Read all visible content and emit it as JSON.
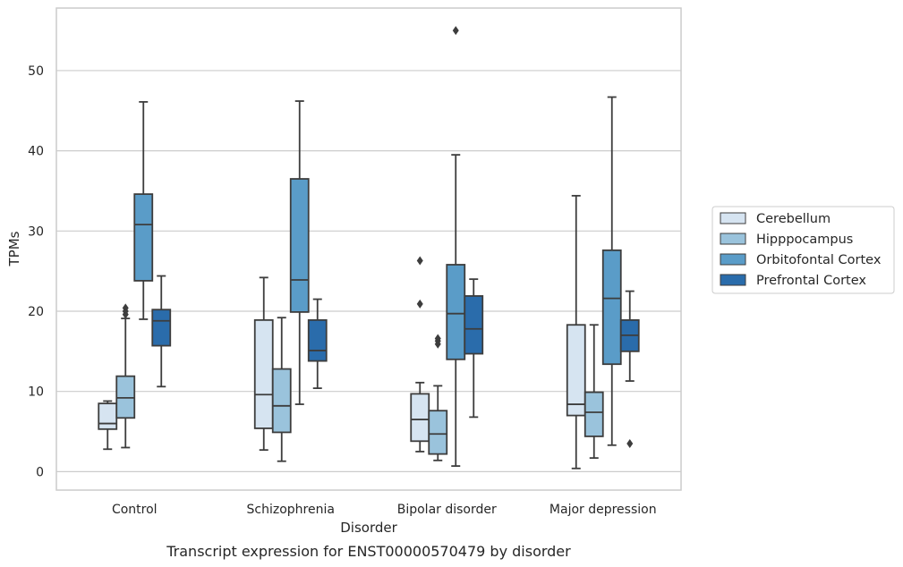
{
  "caption": "Transcript expression for ENST00000570479 by disorder",
  "chart_data": {
    "type": "box",
    "xlabel": "Disorder",
    "ylabel": "TPMs",
    "ylim": [
      -2.3,
      57.8
    ],
    "yticks": [
      0,
      10,
      20,
      30,
      40,
      50
    ],
    "grid": "horizontal",
    "legend_position": "right",
    "categories": [
      "Control",
      "Schizophrenia",
      "Bipolar disorder",
      "Major depression"
    ],
    "series": [
      {
        "name": "Cerebellum",
        "color": "#d6e4f1",
        "boxes": [
          {
            "q1": 5.3,
            "median": 6.0,
            "q3": 8.5,
            "whisker_low": 2.8,
            "whisker_high": 8.8,
            "outliers": []
          },
          {
            "q1": 5.4,
            "median": 9.6,
            "q3": 18.9,
            "whisker_low": 2.7,
            "whisker_high": 24.2,
            "outliers": []
          },
          {
            "q1": 3.8,
            "median": 6.5,
            "q3": 9.7,
            "whisker_low": 2.5,
            "whisker_high": 11.1,
            "outliers": [
              20.9,
              26.3
            ]
          },
          {
            "q1": 7.0,
            "median": 8.4,
            "q3": 18.3,
            "whisker_low": 0.4,
            "whisker_high": 34.4,
            "outliers": []
          }
        ]
      },
      {
        "name": "Hipppocampus",
        "color": "#9ac3dc",
        "boxes": [
          {
            "q1": 6.7,
            "median": 9.2,
            "q3": 11.9,
            "whisker_low": 3.0,
            "whisker_high": 19.1,
            "outliers": [
              19.6,
              20.0,
              20.4
            ]
          },
          {
            "q1": 4.9,
            "median": 8.2,
            "q3": 12.8,
            "whisker_low": 1.3,
            "whisker_high": 19.2,
            "outliers": []
          },
          {
            "q1": 2.2,
            "median": 4.7,
            "q3": 7.6,
            "whisker_low": 1.4,
            "whisker_high": 10.7,
            "outliers": [
              15.9,
              16.3,
              16.6
            ]
          },
          {
            "q1": 4.4,
            "median": 7.4,
            "q3": 9.9,
            "whisker_low": 1.7,
            "whisker_high": 18.3,
            "outliers": []
          }
        ]
      },
      {
        "name": "Orbitofontal Cortex",
        "color": "#5a9cc8",
        "boxes": [
          {
            "q1": 23.8,
            "median": 30.8,
            "q3": 34.6,
            "whisker_low": 19.0,
            "whisker_high": 46.1,
            "outliers": []
          },
          {
            "q1": 19.9,
            "median": 23.9,
            "q3": 36.5,
            "whisker_low": 8.4,
            "whisker_high": 46.2,
            "outliers": []
          },
          {
            "q1": 14.0,
            "median": 19.7,
            "q3": 25.8,
            "whisker_low": 0.7,
            "whisker_high": 39.5,
            "outliers": [
              55.0
            ]
          },
          {
            "q1": 13.4,
            "median": 21.6,
            "q3": 27.6,
            "whisker_low": 3.3,
            "whisker_high": 46.7,
            "outliers": []
          }
        ]
      },
      {
        "name": "Prefrontal Cortex",
        "color": "#2a6cab",
        "boxes": [
          {
            "q1": 15.7,
            "median": 18.8,
            "q3": 20.2,
            "whisker_low": 10.6,
            "whisker_high": 24.4,
            "outliers": []
          },
          {
            "q1": 13.8,
            "median": 15.1,
            "q3": 18.9,
            "whisker_low": 10.4,
            "whisker_high": 21.5,
            "outliers": []
          },
          {
            "q1": 14.7,
            "median": 17.8,
            "q3": 21.9,
            "whisker_low": 6.8,
            "whisker_high": 24.0,
            "outliers": []
          },
          {
            "q1": 15.0,
            "median": 17.0,
            "q3": 18.9,
            "whisker_low": 11.3,
            "whisker_high": 22.5,
            "outliers": [
              3.5
            ]
          }
        ]
      }
    ]
  }
}
